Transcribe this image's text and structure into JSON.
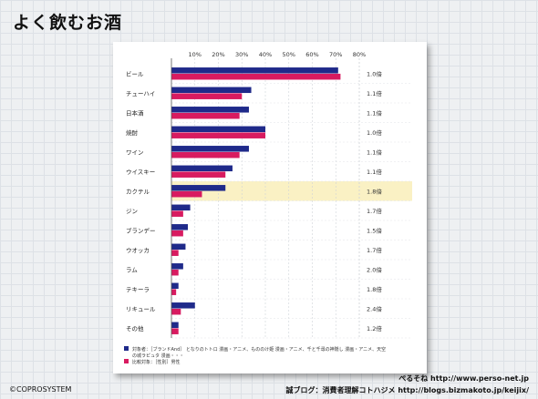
{
  "page": {
    "title": "よく飲むお酒",
    "copyright": "©COPROSYSTEM",
    "credit1": "ぺるそね  http://www.perso-net.jp",
    "credit2": "誠ブログ：消費者理解コトハジメ  http://blogs.bizmakoto.jp/keijix/"
  },
  "chart_data": {
    "type": "bar",
    "orientation": "horizontal",
    "x_ticks": [
      "10%",
      "20%",
      "30%",
      "40%",
      "50%",
      "60%",
      "70%",
      "80%"
    ],
    "xlim": [
      0,
      80
    ],
    "categories": [
      "ビール",
      "チューハイ",
      "日本酒",
      "焼酎",
      "ワイン",
      "ウイスキー",
      "カクテル",
      "ジン",
      "ブランデー",
      "ウオッカ",
      "ラム",
      "テキーラ",
      "リキュール",
      "その他"
    ],
    "series": [
      {
        "name": "対象者：［ブランドAnd］ となりのトトロ 漫画・アニメ、もののけ姫 漫画・アニメ、千と千尋の神隠し 漫画・アニメ、天空の城ラピュタ 漫画・・・",
        "color": "#1f2a8a",
        "values": [
          71,
          34,
          33,
          40,
          33,
          26,
          23,
          8,
          7,
          6,
          5,
          3,
          10,
          3
        ]
      },
      {
        "name": "比較対象：［性別］男性",
        "color": "#d81b60",
        "values": [
          72,
          30,
          29,
          40,
          29,
          23,
          13,
          5,
          5,
          3,
          3,
          2,
          4,
          3
        ]
      }
    ],
    "ratios": [
      "1.0倍",
      "1.1倍",
      "1.1倍",
      "1.0倍",
      "1.1倍",
      "1.1倍",
      "1.8倍",
      "1.7倍",
      "1.5倍",
      "1.7倍",
      "2.0倍",
      "1.8倍",
      "2.4倍",
      "1.2倍"
    ],
    "highlight_category": "カクテル",
    "highlight_color": "#faf1c4",
    "grid": true
  }
}
